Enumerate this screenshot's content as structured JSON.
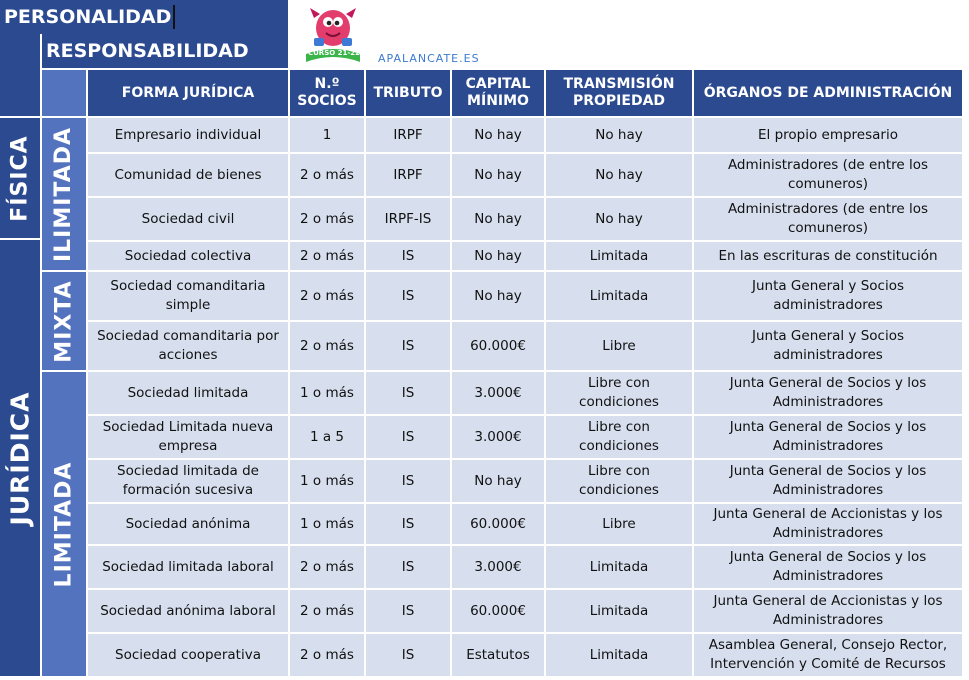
{
  "titles": {
    "personalidad": "PERSONALIDAD",
    "responsabilidad": "RESPONSABILIDAD",
    "site": "APALANCATE.ES",
    "badge": "CURSO 21-22"
  },
  "headers": [
    "FORMA JURÍDICA",
    "N.º SOCIOS",
    "TRIBUTO",
    "CAPITAL MÍNIMO",
    "TRANSMISIÓN PROPIEDAD",
    "ÓRGANOS DE ADMINISTRACIÓN"
  ],
  "groups": {
    "fisica": "FÍSICA",
    "juridica": "JURÍDICA",
    "ilimitada": "ILIMITADA",
    "mixta": "MIXTA",
    "limitada": "LIMITADA"
  },
  "rows": [
    {
      "forma": "Empresario individual",
      "socios": "1",
      "tributo": "IRPF",
      "capital": "No hay",
      "transmision": "No hay",
      "organos": "El propio empresario"
    },
    {
      "forma": "Comunidad de bienes",
      "socios": "2 o más",
      "tributo": "IRPF",
      "capital": "No hay",
      "transmision": "No hay",
      "organos": "Administradores (de entre los comuneros)"
    },
    {
      "forma": "Sociedad civil",
      "socios": "2 o más",
      "tributo": "IRPF-IS",
      "capital": "No hay",
      "transmision": "No hay",
      "organos": "Administradores (de entre los comuneros)"
    },
    {
      "forma": "Sociedad colectiva",
      "socios": "2 o más",
      "tributo": "IS",
      "capital": "No hay",
      "transmision": "Limitada",
      "organos": "En las escrituras de constitución"
    },
    {
      "forma": "Sociedad comanditaria simple",
      "socios": "2 o más",
      "tributo": "IS",
      "capital": "No hay",
      "transmision": "Limitada",
      "organos": "Junta General y Socios administradores"
    },
    {
      "forma": "Sociedad comanditaria por acciones",
      "socios": "2 o más",
      "tributo": "IS",
      "capital": "60.000€",
      "transmision": "Libre",
      "organos": "Junta General y Socios administradores"
    },
    {
      "forma": "Sociedad limitada",
      "socios": "1 o más",
      "tributo": "IS",
      "capital": "3.000€",
      "transmision": "Libre con condiciones",
      "organos": "Junta General de Socios y los Administradores"
    },
    {
      "forma": "Sociedad Limitada nueva empresa",
      "socios": "1 a 5",
      "tributo": "IS",
      "capital": "3.000€",
      "transmision": "Libre con condiciones",
      "organos": "Junta General de Socios y los Administradores"
    },
    {
      "forma": "Sociedad limitada de formación sucesiva",
      "socios": "1 o más",
      "tributo": "IS",
      "capital": "No hay",
      "transmision": "Libre con condiciones",
      "organos": "Junta General de Socios y los Administradores"
    },
    {
      "forma": "Sociedad anónima",
      "socios": "1 o más",
      "tributo": "IS",
      "capital": "60.000€",
      "transmision": "Libre",
      "organos": "Junta General de Accionistas y los Administradores"
    },
    {
      "forma": "Sociedad limitada laboral",
      "socios": "2 o más",
      "tributo": "IS",
      "capital": "3.000€",
      "transmision": "Limitada",
      "organos": "Junta General de Socios y los Administradores"
    },
    {
      "forma": "Sociedad anónima laboral",
      "socios": "2 o más",
      "tributo": "IS",
      "capital": "60.000€",
      "transmision": "Limitada",
      "organos": "Junta General de Accionistas y los Administradores"
    },
    {
      "forma": "Sociedad cooperativa",
      "socios": "2 o más",
      "tributo": "IS",
      "capital": "Estatutos",
      "transmision": "Limitada",
      "organos": "Asamblea General, Consejo Rector, Intervención y Comité de Recursos"
    }
  ]
}
